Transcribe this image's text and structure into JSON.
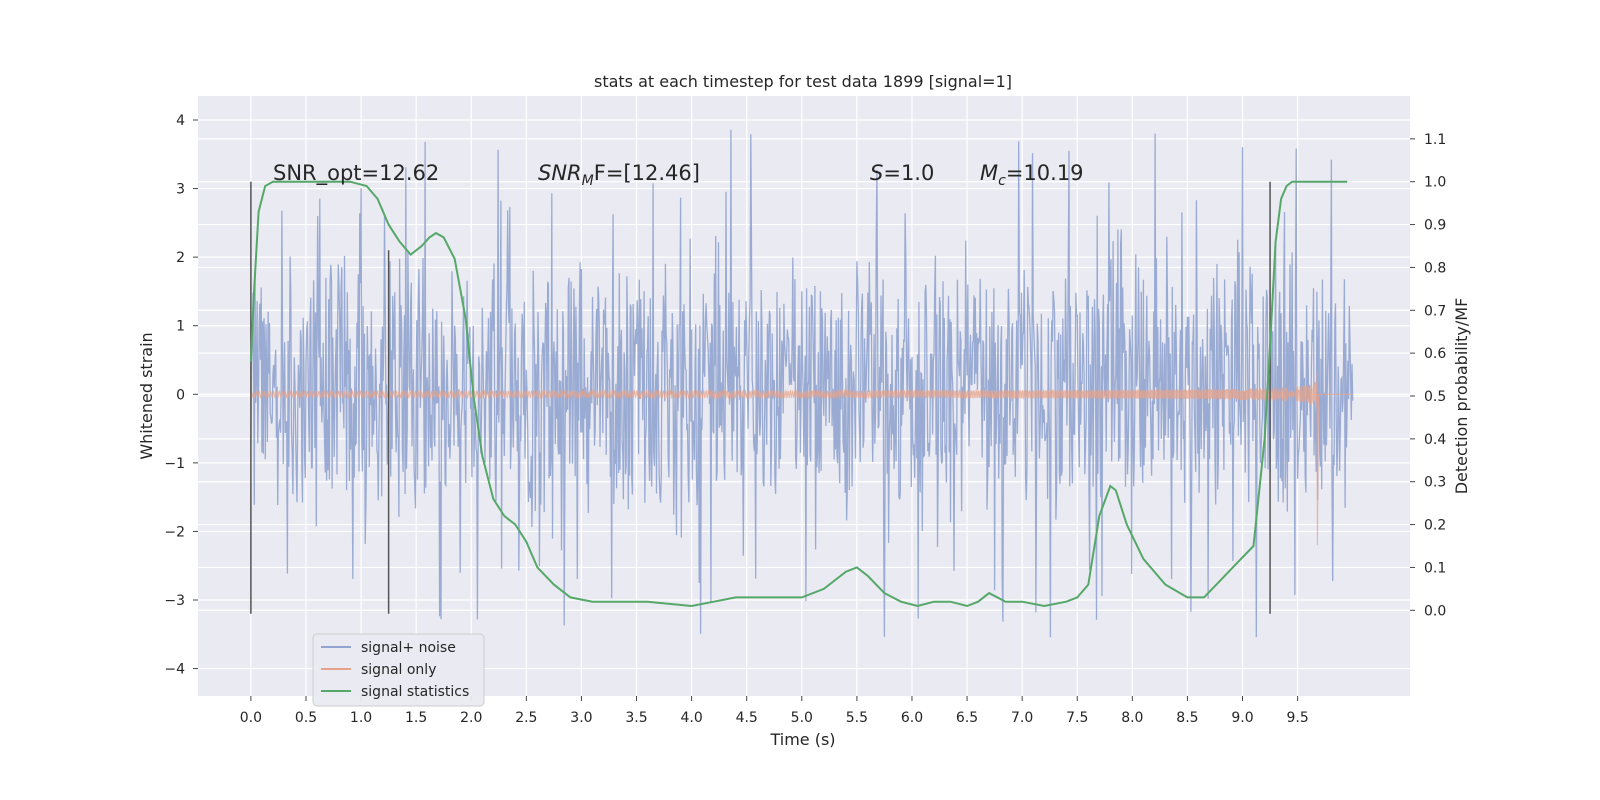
{
  "chart_data": {
    "type": "line",
    "title": "stats at each timestep for test data 1899 [signal=1]",
    "xlabel": "Time (s)",
    "ylabel": "Whitened strain",
    "ylabel_right": "Detection probability/MF",
    "xlim": [
      -0.48,
      10.52
    ],
    "ylim": [
      -4.4,
      4.35
    ],
    "ylim_right": [
      -0.2,
      1.2
    ],
    "x_ticks": [
      "0.0",
      "0.5",
      "1.0",
      "1.5",
      "2.0",
      "2.5",
      "3.0",
      "3.5",
      "4.0",
      "4.5",
      "5.0",
      "5.5",
      "6.0",
      "6.5",
      "7.0",
      "7.5",
      "8.0",
      "8.5",
      "9.0",
      "9.5"
    ],
    "y_ticks": [
      "4",
      "3",
      "2",
      "1",
      "0",
      "−1",
      "−2",
      "−3",
      "−4"
    ],
    "y_ticks_right": [
      "1.1",
      "1.0",
      "0.9",
      "0.8",
      "0.7",
      "0.6",
      "0.5",
      "0.4",
      "0.3",
      "0.2",
      "0.1",
      "0.0"
    ],
    "grid": true,
    "legend_position": "lower-left",
    "annotations": {
      "snr_opt": "SNR_opt=12.62",
      "snr_mf_main": "SNR",
      "snr_mf_sub": "M",
      "snr_mf_rest": "F=[12.46]",
      "s_main": "S",
      "s_rest": "=1.0",
      "mc_main": "M",
      "mc_sub": "c",
      "mc_rest": "=10.19"
    },
    "vertical_markers": [
      {
        "x": 0.0,
        "y": [
          -3.2,
          3.1
        ]
      },
      {
        "x": 1.25,
        "y": [
          -3.2,
          2.1
        ]
      },
      {
        "x": 9.25,
        "y": [
          -3.2,
          3.1
        ]
      }
    ],
    "series": [
      {
        "name": "signal+ noise",
        "color": "#91a4cf",
        "kind": "noise",
        "x_range": [
          0.0,
          10.0
        ],
        "typical_range": [
          -1.6,
          1.9
        ],
        "peak_range": [
          -3.6,
          3.95
        ]
      },
      {
        "name": "signal only",
        "color": "#e6a18a",
        "kind": "chirp",
        "x_range": [
          0.0,
          9.68
        ],
        "merger_time": 9.68,
        "peak_amplitude": 1.95
      },
      {
        "name": "signal statistics",
        "color": "#55a868",
        "kind": "line",
        "axis": "right",
        "x": [
          0.0,
          0.03,
          0.07,
          0.13,
          0.2,
          0.35,
          0.6,
          0.9,
          1.05,
          1.15,
          1.25,
          1.35,
          1.45,
          1.55,
          1.62,
          1.68,
          1.75,
          1.85,
          1.95,
          2.02,
          2.1,
          2.2,
          2.3,
          2.4,
          2.5,
          2.6,
          2.75,
          2.9,
          3.1,
          3.3,
          3.6,
          4.0,
          4.2,
          4.4,
          4.7,
          5.0,
          5.2,
          5.4,
          5.5,
          5.6,
          5.75,
          5.9,
          6.05,
          6.2,
          6.35,
          6.5,
          6.6,
          6.7,
          6.85,
          7.0,
          7.2,
          7.4,
          7.5,
          7.6,
          7.7,
          7.8,
          7.85,
          7.95,
          8.1,
          8.3,
          8.5,
          8.65,
          8.8,
          8.95,
          9.1,
          9.2,
          9.25,
          9.3,
          9.35,
          9.4,
          9.45,
          9.5,
          9.7,
          9.95
        ],
        "y": [
          0.58,
          0.75,
          0.93,
          0.99,
          1.0,
          1.0,
          1.0,
          1.0,
          0.99,
          0.96,
          0.9,
          0.86,
          0.83,
          0.85,
          0.87,
          0.88,
          0.87,
          0.82,
          0.68,
          0.5,
          0.36,
          0.26,
          0.22,
          0.2,
          0.16,
          0.1,
          0.06,
          0.03,
          0.02,
          0.02,
          0.02,
          0.01,
          0.02,
          0.03,
          0.03,
          0.03,
          0.05,
          0.09,
          0.1,
          0.08,
          0.04,
          0.02,
          0.01,
          0.02,
          0.02,
          0.01,
          0.02,
          0.04,
          0.02,
          0.02,
          0.01,
          0.02,
          0.03,
          0.06,
          0.22,
          0.29,
          0.28,
          0.2,
          0.12,
          0.06,
          0.03,
          0.03,
          0.07,
          0.11,
          0.15,
          0.4,
          0.62,
          0.86,
          0.96,
          0.99,
          1.0,
          1.0,
          1.0,
          1.0
        ]
      }
    ]
  }
}
